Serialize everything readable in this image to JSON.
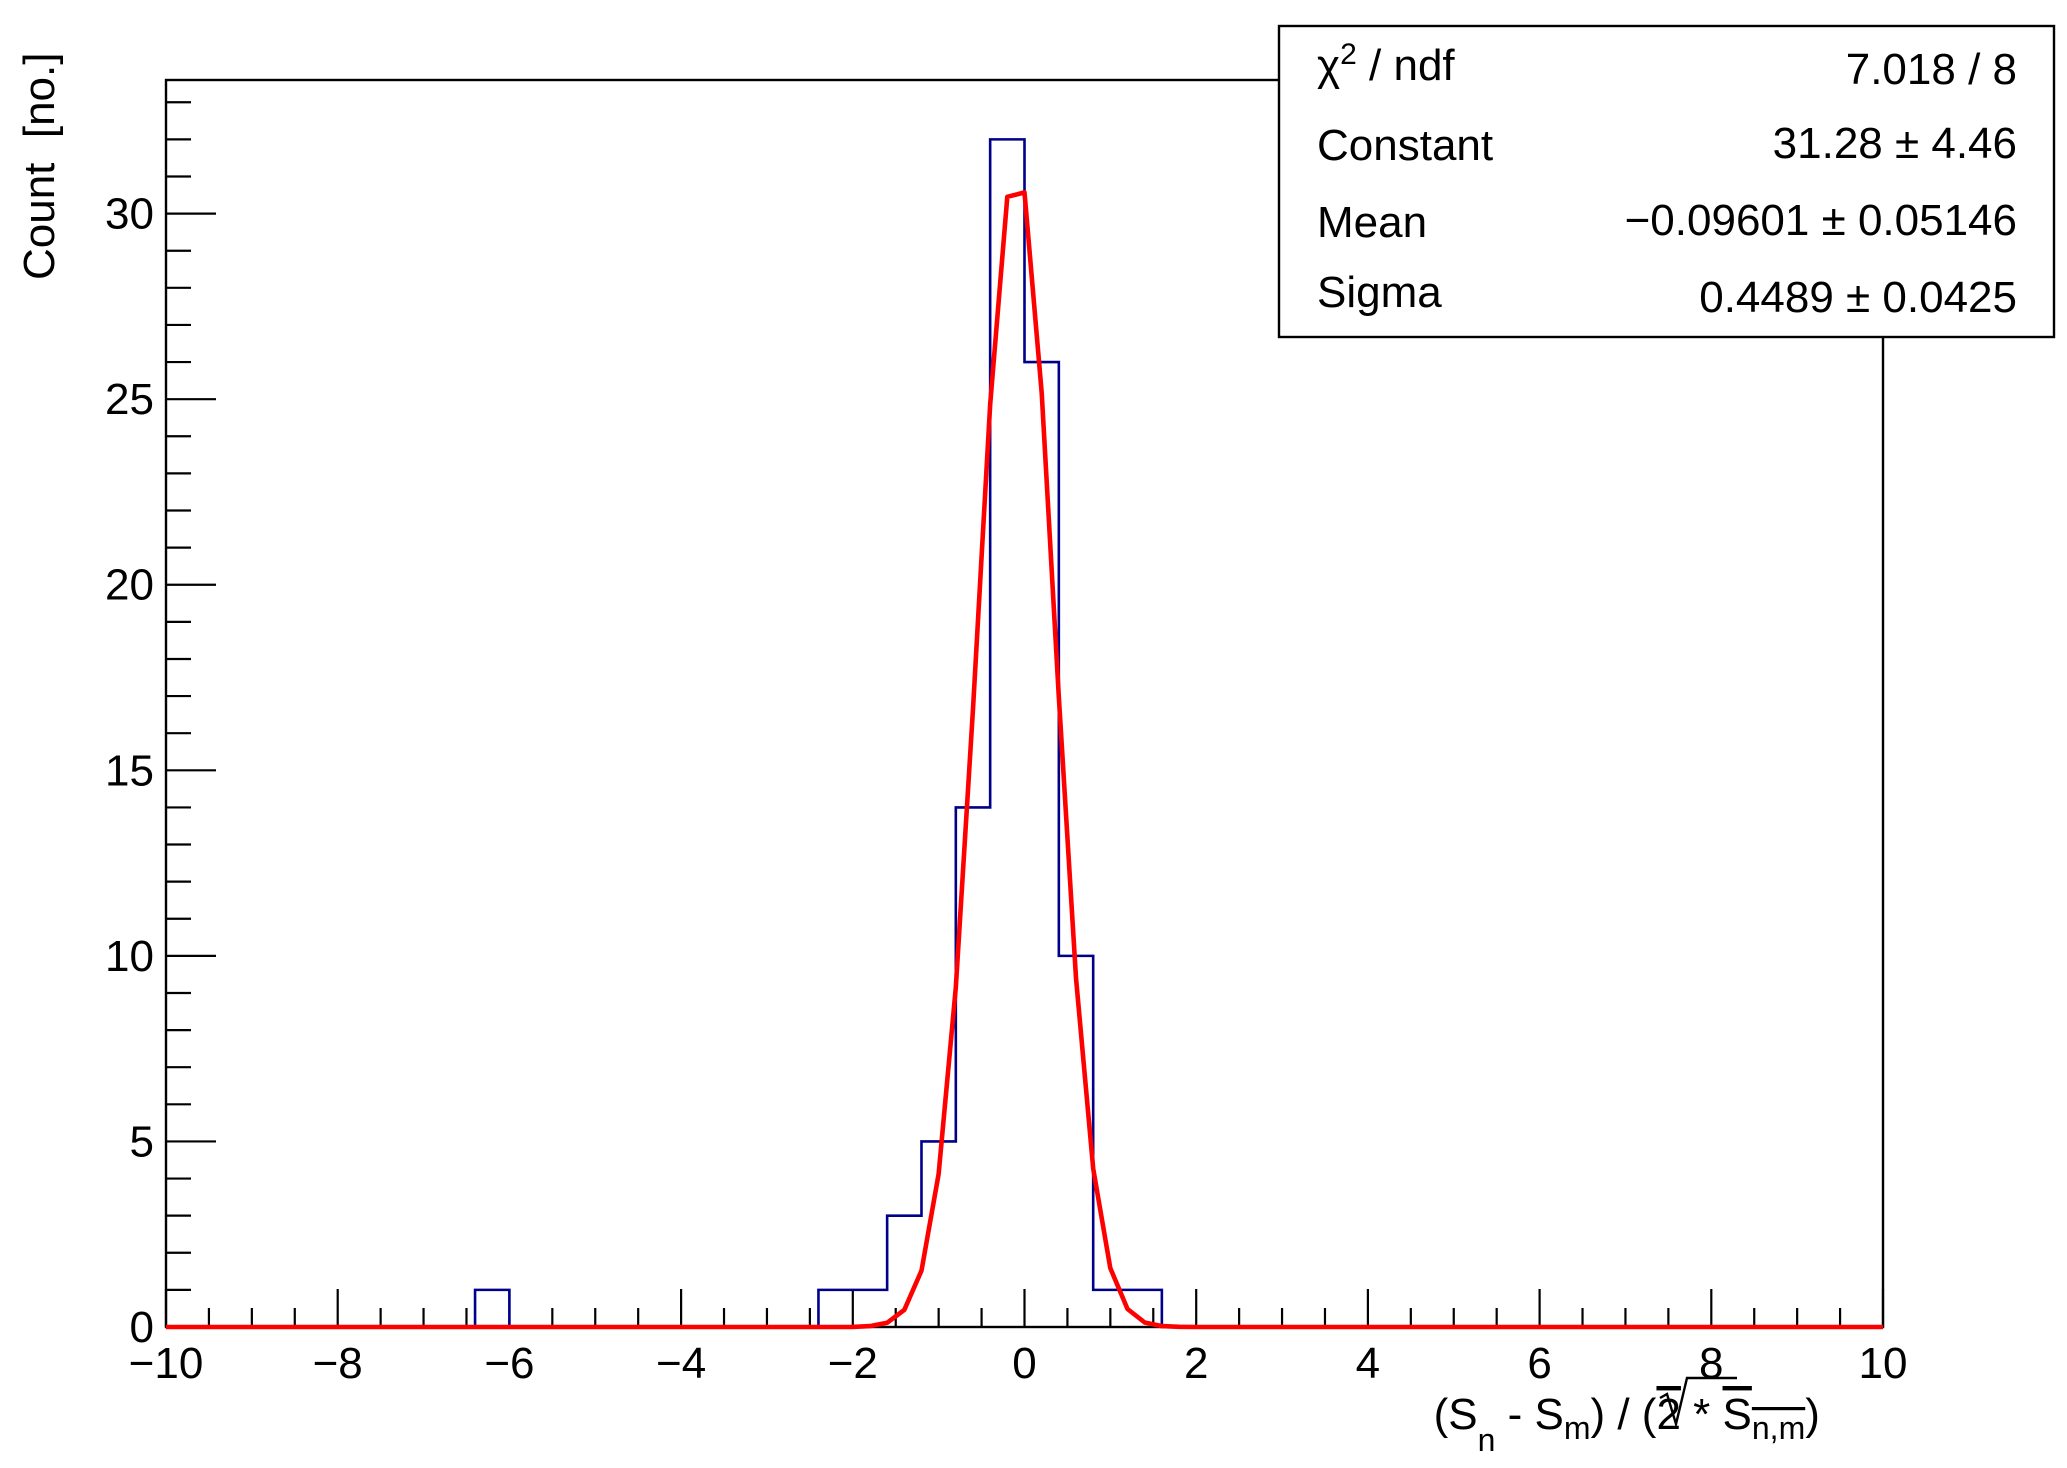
{
  "chart_data": {
    "type": "bar",
    "title": "",
    "xlabel": {
      "parts": [
        "(S",
        "n",
        " - S",
        "m",
        ") / (",
        "2",
        " * ",
        "S",
        "n,m",
        ")"
      ]
    },
    "ylabel": "Count  [no.]",
    "xlim": [
      -10,
      10
    ],
    "ylim": [
      0,
      33.6
    ],
    "x_ticks": [
      "−10",
      "−8",
      "−6",
      "−4",
      "−2",
      "0",
      "2",
      "4",
      "6",
      "8",
      "10"
    ],
    "y_ticks": [
      "0",
      "5",
      "10",
      "15",
      "20",
      "25",
      "30"
    ],
    "histogram": {
      "bin_width": 0.4,
      "bins": [
        {
          "x0": -6.4,
          "x1": -6.0,
          "count": 1
        },
        {
          "x0": -2.4,
          "x1": -2.0,
          "count": 1
        },
        {
          "x0": -2.0,
          "x1": -1.6,
          "count": 1
        },
        {
          "x0": -1.6,
          "x1": -1.2,
          "count": 3
        },
        {
          "x0": -1.2,
          "x1": -0.8,
          "count": 5
        },
        {
          "x0": -0.8,
          "x1": -0.4,
          "count": 14
        },
        {
          "x0": -0.4,
          "x1": 0.0,
          "count": 32
        },
        {
          "x0": 0.0,
          "x1": 0.4,
          "count": 26
        },
        {
          "x0": 0.4,
          "x1": 0.8,
          "count": 10
        },
        {
          "x0": 0.8,
          "x1": 1.2,
          "count": 1
        },
        {
          "x0": 1.2,
          "x1": 1.6,
          "count": 1
        }
      ]
    },
    "fit": {
      "function": "gaus",
      "constant": 31.28,
      "mean": -0.09601,
      "sigma": 0.4489
    },
    "stats_box": {
      "rows": [
        {
          "name": "χ",
          "sup": "2",
          "rest": " / ndf",
          "value": "7.018 / 8"
        },
        {
          "name": "Constant",
          "value": "31.28 ± 4.46"
        },
        {
          "name": "Mean",
          "value": "−0.09601 ± 0.05146"
        },
        {
          "name": "Sigma",
          "value": "0.4489 ± 0.0425"
        }
      ]
    },
    "colors": {
      "histogram": "#00008b",
      "fit": "#ff0000",
      "axes": "#000000"
    }
  }
}
